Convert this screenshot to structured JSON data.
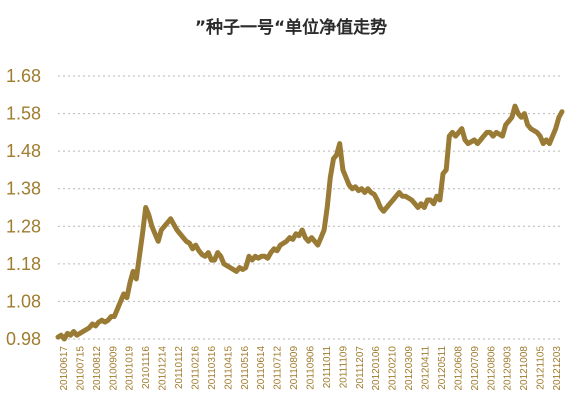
{
  "chart_data": {
    "type": "line",
    "title": "”种子一号“单位净值走势",
    "xlabel": "",
    "ylabel": "",
    "ylim": [
      0.98,
      1.68
    ],
    "yticks": [
      "1.68",
      "1.58",
      "1.48",
      "1.38",
      "1.28",
      "1.18",
      "1.08",
      "0.98"
    ],
    "grid": true,
    "legend": "none",
    "line_color": "#9a7b35",
    "x_tick_labels": [
      "20100617",
      "20100715",
      "20100812",
      "20100909",
      "20101019",
      "20101116",
      "20101214",
      "20110112",
      "20110216",
      "20110316",
      "20110415",
      "20110516",
      "20110614",
      "20110712",
      "20110809",
      "20110906",
      "20111011",
      "20111109",
      "20111207",
      "20120106",
      "20120210",
      "20120309",
      "20120411",
      "20120511",
      "20120608",
      "20120709",
      "20120806",
      "20120903",
      "20121008",
      "20121105",
      "20121203"
    ],
    "series": [
      {
        "values": [
          0.985,
          0.99,
          0.98,
          0.995,
          0.99,
          1.0,
          0.99,
          0.995,
          1.0,
          1.005,
          1.01,
          1.02,
          1.015,
          1.025,
          1.03,
          1.025,
          1.03,
          1.04,
          1.04,
          1.06,
          1.08,
          1.1,
          1.09,
          1.13,
          1.16,
          1.14,
          1.2,
          1.26,
          1.33,
          1.31,
          1.28,
          1.26,
          1.24,
          1.27,
          1.28,
          1.29,
          1.3,
          1.285,
          1.27,
          1.26,
          1.25,
          1.24,
          1.235,
          1.22,
          1.23,
          1.215,
          1.205,
          1.2,
          1.21,
          1.19,
          1.19,
          1.21,
          1.2,
          1.18,
          1.175,
          1.17,
          1.165,
          1.16,
          1.17,
          1.165,
          1.17,
          1.2,
          1.19,
          1.2,
          1.195,
          1.2,
          1.2,
          1.195,
          1.21,
          1.22,
          1.215,
          1.23,
          1.235,
          1.24,
          1.25,
          1.245,
          1.26,
          1.255,
          1.27,
          1.25,
          1.24,
          1.25,
          1.24,
          1.23,
          1.25,
          1.27,
          1.33,
          1.41,
          1.46,
          1.47,
          1.5,
          1.43,
          1.41,
          1.39,
          1.38,
          1.385,
          1.375,
          1.38,
          1.37,
          1.38,
          1.37,
          1.365,
          1.35,
          1.33,
          1.32,
          1.33,
          1.34,
          1.35,
          1.36,
          1.37,
          1.36,
          1.36,
          1.355,
          1.35,
          1.34,
          1.33,
          1.34,
          1.33,
          1.35,
          1.35,
          1.34,
          1.36,
          1.35,
          1.42,
          1.43,
          1.52,
          1.53,
          1.52,
          1.53,
          1.54,
          1.51,
          1.5,
          1.505,
          1.51,
          1.5,
          1.51,
          1.52,
          1.53,
          1.53,
          1.52,
          1.53,
          1.525,
          1.52,
          1.55,
          1.56,
          1.57,
          1.6,
          1.58,
          1.57,
          1.58,
          1.55,
          1.54,
          1.535,
          1.53,
          1.52,
          1.5,
          1.51,
          1.5,
          1.52,
          1.54,
          1.57,
          1.585
        ]
      }
    ]
  }
}
